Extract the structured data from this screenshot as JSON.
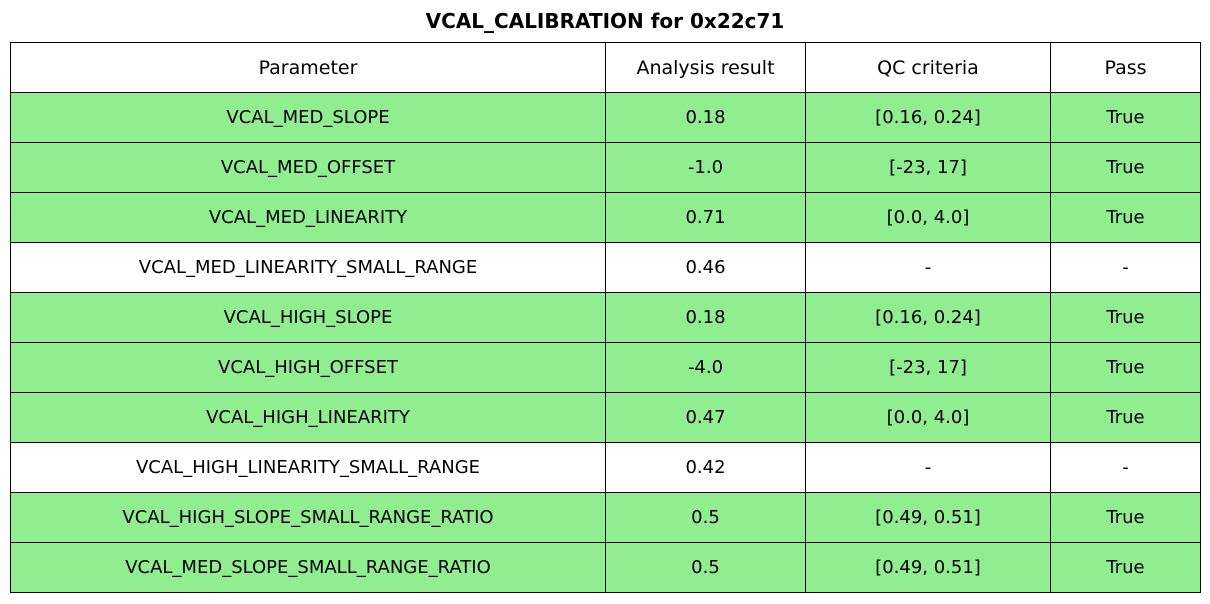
{
  "title": "VCAL_CALIBRATION for 0x22c71",
  "colors": {
    "pass_row_background": "#90ee90",
    "neutral_row_background": "#ffffff",
    "border": "#000000",
    "text": "#000000"
  },
  "chart_data": {
    "type": "table",
    "title": "VCAL_CALIBRATION for 0x22c71",
    "columns": [
      "Parameter",
      "Analysis result",
      "QC criteria",
      "Pass"
    ],
    "rows": [
      {
        "cells": [
          "VCAL_MED_SLOPE",
          "0.18",
          "[0.16, 0.24]",
          "True"
        ],
        "pass": true
      },
      {
        "cells": [
          "VCAL_MED_OFFSET",
          "-1.0",
          "[-23, 17]",
          "True"
        ],
        "pass": true
      },
      {
        "cells": [
          "VCAL_MED_LINEARITY",
          "0.71",
          "[0.0, 4.0]",
          "True"
        ],
        "pass": true
      },
      {
        "cells": [
          "VCAL_MED_LINEARITY_SMALL_RANGE",
          "0.46",
          "-",
          "-"
        ],
        "pass": false
      },
      {
        "cells": [
          "VCAL_HIGH_SLOPE",
          "0.18",
          "[0.16, 0.24]",
          "True"
        ],
        "pass": true
      },
      {
        "cells": [
          "VCAL_HIGH_OFFSET",
          "-4.0",
          "[-23, 17]",
          "True"
        ],
        "pass": true
      },
      {
        "cells": [
          "VCAL_HIGH_LINEARITY",
          "0.47",
          "[0.0, 4.0]",
          "True"
        ],
        "pass": true
      },
      {
        "cells": [
          "VCAL_HIGH_LINEARITY_SMALL_RANGE",
          "0.42",
          "-",
          "-"
        ],
        "pass": false
      },
      {
        "cells": [
          "VCAL_HIGH_SLOPE_SMALL_RANGE_RATIO",
          "0.5",
          "[0.49, 0.51]",
          "True"
        ],
        "pass": true
      },
      {
        "cells": [
          "VCAL_MED_SLOPE_SMALL_RANGE_RATIO",
          "0.5",
          "[0.49, 0.51]",
          "True"
        ],
        "pass": true
      }
    ],
    "layout": {
      "highlight_color": "#90ee90",
      "grid": true,
      "header_background": "#ffffff"
    }
  }
}
